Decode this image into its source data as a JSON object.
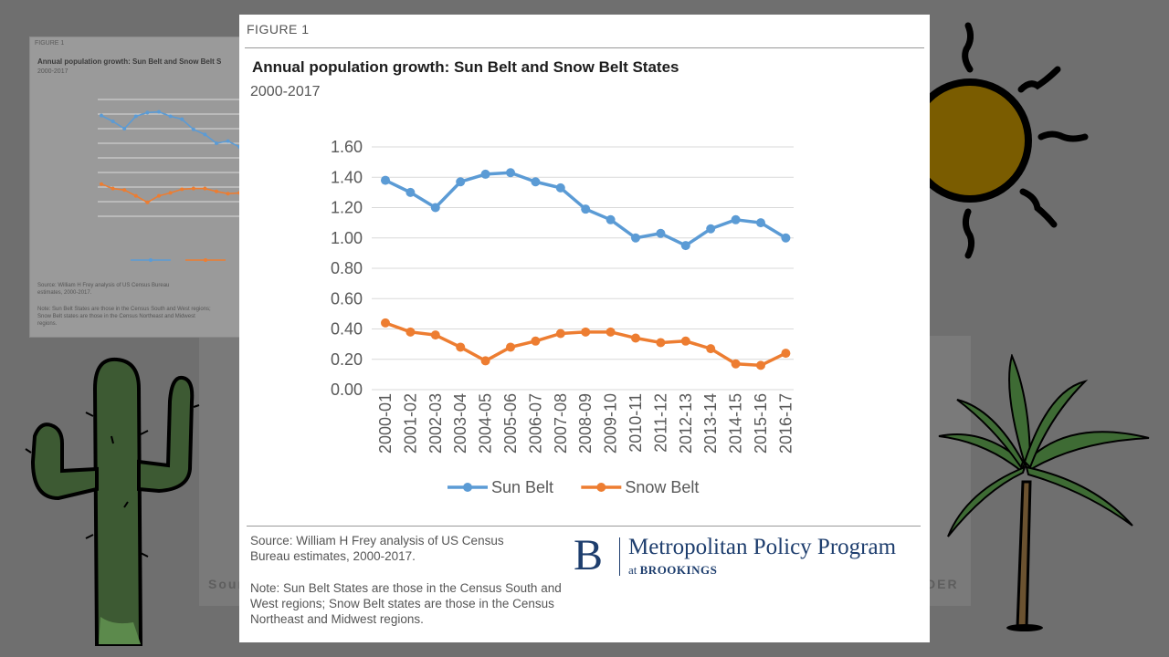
{
  "figure_label": "FIGURE 1",
  "chart_data": {
    "type": "line",
    "title": "Annual population growth: Sun Belt and Snow Belt States",
    "subtitle": "2000-2017",
    "xlabel": "",
    "ylabel": "",
    "ylim": [
      0,
      1.6
    ],
    "yticks": [
      "0.00",
      "0.20",
      "0.40",
      "0.60",
      "0.80",
      "1.00",
      "1.20",
      "1.40",
      "1.60"
    ],
    "categories": [
      "2000-01",
      "2001-02",
      "2002-03",
      "2003-04",
      "2004-05",
      "2005-06",
      "2006-07",
      "2007-08",
      "2008-09",
      "2009-10",
      "2010-11",
      "2011-12",
      "2012-13",
      "2013-14",
      "2014-15",
      "2015-16",
      "2016-17"
    ],
    "series": [
      {
        "name": "Sun Belt",
        "color": "#5b9bd5",
        "values": [
          1.38,
          1.3,
          1.2,
          1.37,
          1.42,
          1.43,
          1.37,
          1.33,
          1.19,
          1.12,
          1.0,
          1.03,
          0.95,
          1.06,
          1.12,
          1.1,
          1.0
        ]
      },
      {
        "name": "Snow Belt",
        "color": "#ed7d31",
        "values": [
          0.44,
          0.38,
          0.36,
          0.28,
          0.19,
          0.28,
          0.32,
          0.37,
          0.38,
          0.38,
          0.34,
          0.31,
          0.32,
          0.27,
          0.17,
          0.16,
          0.24
        ]
      }
    ],
    "legend_position": "bottom",
    "grid": true
  },
  "source_text": "Source: William H Frey analysis of US Census Bureau estimates, 2000-2017.",
  "note_text": "Note: Sun Belt States are those in the Census South and West regions; Snow Belt states are those in the Census Northeast and Midwest regions.",
  "logo": {
    "letter": "B",
    "name": "Metropolitan Policy Program",
    "sub_prefix": "at ",
    "sub_org": "BROOKINGS"
  },
  "background": {
    "thumb_figure_label": "FIGURE 1",
    "thumb_title": "Annual population growth: Sun Belt and Snow Belt S",
    "thumb_subtitle": "2000-2017",
    "thumb_source": "Source: William H Frey analysis of US Census Bureau estimates, 2000-2017.",
    "thumb_note": "Note: Sun Belt States are those in the Census South and West regions; Snow Belt states are those in the Census Northeast and Midwest regions.",
    "partial_word_left": "Sourc",
    "partial_word_right": "DER"
  }
}
